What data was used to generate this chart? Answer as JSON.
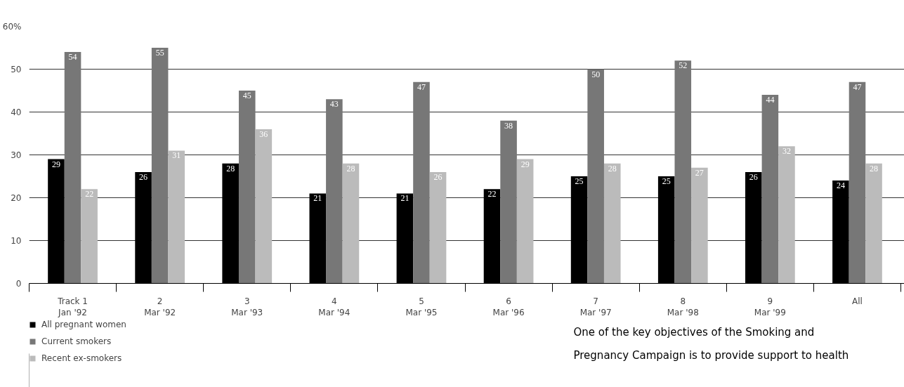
{
  "chart_data": {
    "type": "bar",
    "categories": [
      "Track 1\nJan '92",
      "2\nMar '92",
      "3\nMar '93",
      "4\nMar '94",
      "5\nMar '95",
      "6\nMar '96",
      "7\nMar '97",
      "8\nMar '98",
      "9\nMar '99",
      "All"
    ],
    "series": [
      {
        "name": "All pregnant women",
        "color": "#000000",
        "values": [
          29,
          26,
          28,
          21,
          21,
          22,
          25,
          25,
          26,
          24
        ]
      },
      {
        "name": "Current smokers",
        "color": "#777777",
        "values": [
          54,
          55,
          45,
          43,
          47,
          38,
          50,
          52,
          44,
          47
        ]
      },
      {
        "name": "Recent ex-smokers",
        "color": "#bbbbbb",
        "values": [
          22,
          31,
          36,
          28,
          26,
          29,
          28,
          27,
          32,
          28
        ]
      }
    ],
    "ylim": [
      0,
      60
    ],
    "yticks": [
      0,
      10,
      20,
      30,
      40,
      50,
      {
        "value": 60,
        "label": "60%"
      }
    ],
    "grid": "y",
    "legend": "bottom left",
    "data_labels": true,
    "annotations": [
      "One of the key objectives of the Smoking and Pregnancy Campaign is to provide support to health"
    ]
  }
}
